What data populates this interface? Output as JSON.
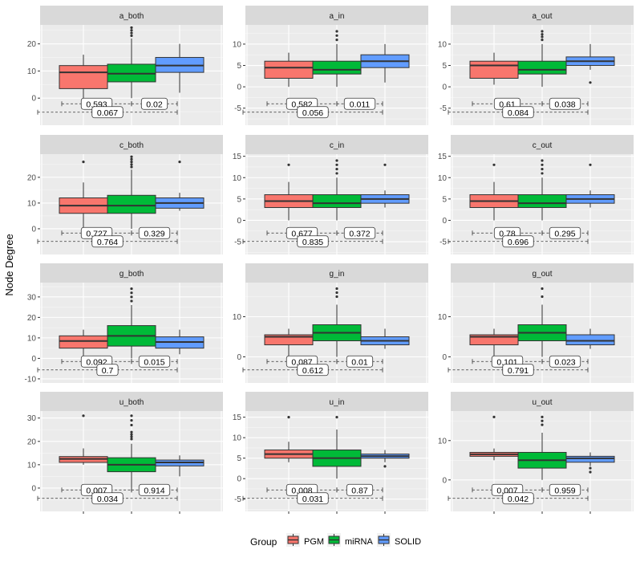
{
  "y_axis_title": "Node Degree",
  "colors": {
    "PGM": "#F8766D",
    "miRNA": "#00BA38",
    "SOLID": "#619CFF",
    "panel_bg": "#EBEBEB",
    "strip_bg": "#D9D9D9"
  },
  "legend": {
    "title": "Group",
    "items": [
      "PGM",
      "miRNA",
      "SOLID"
    ]
  },
  "chart_data": {
    "type": "boxplot",
    "facets": "4 rows x 3 columns, free y scales",
    "groups": [
      "PGM",
      "miRNA",
      "SOLID"
    ],
    "panels": [
      {
        "title": "a_both",
        "ylim": [
          -10,
          27
        ],
        "ticks": [
          0,
          10,
          20
        ],
        "boxes": [
          {
            "group": "PGM",
            "min": 0,
            "q1": 3.5,
            "median": 9.5,
            "q3": 12,
            "max": 16,
            "outliers": []
          },
          {
            "group": "miRNA",
            "min": 0,
            "q1": 6,
            "median": 9,
            "q3": 12.5,
            "max": 22,
            "outliers": [
              23,
              24,
              25,
              26
            ]
          },
          {
            "group": "SOLID",
            "min": 2,
            "q1": 9.5,
            "median": 12,
            "q3": 15,
            "max": 20,
            "outliers": []
          }
        ],
        "pvalues": [
          "0.593",
          "0.02",
          "0.067"
        ]
      },
      {
        "title": "a_in",
        "ylim": [
          -9,
          14.5
        ],
        "ticks": [
          -5,
          0,
          5,
          10
        ],
        "boxes": [
          {
            "group": "PGM",
            "min": 0,
            "q1": 2,
            "median": 4.5,
            "q3": 6,
            "max": 8,
            "outliers": []
          },
          {
            "group": "miRNA",
            "min": 0,
            "q1": 3,
            "median": 4,
            "q3": 6,
            "max": 10,
            "outliers": [
              11,
              12,
              13
            ]
          },
          {
            "group": "SOLID",
            "min": 1,
            "q1": 4.5,
            "median": 6,
            "q3": 7.5,
            "max": 10,
            "outliers": []
          }
        ],
        "pvalues": [
          "0.582",
          "0.011",
          "0.056"
        ]
      },
      {
        "title": "a_out",
        "ylim": [
          -9,
          14.5
        ],
        "ticks": [
          -5,
          0,
          5,
          10
        ],
        "boxes": [
          {
            "group": "PGM",
            "min": 0.5,
            "q1": 2,
            "median": 5,
            "q3": 6,
            "max": 8,
            "outliers": []
          },
          {
            "group": "miRNA",
            "min": 0,
            "q1": 3,
            "median": 4,
            "q3": 6,
            "max": 10,
            "outliers": [
              11,
              11.7,
              12.3,
              13
            ]
          },
          {
            "group": "SOLID",
            "min": 4,
            "q1": 5,
            "median": 6,
            "q3": 7,
            "max": 10,
            "outliers": [
              1
            ]
          }
        ],
        "pvalues": [
          "0.61",
          "0.038",
          "0.084"
        ]
      },
      {
        "title": "c_both",
        "ylim": [
          -10,
          29
        ],
        "ticks": [
          0,
          10,
          20
        ],
        "boxes": [
          {
            "group": "PGM",
            "min": 0,
            "q1": 6,
            "median": 9,
            "q3": 12,
            "max": 18,
            "outliers": [
              26
            ]
          },
          {
            "group": "miRNA",
            "min": 0,
            "q1": 6,
            "median": 9,
            "q3": 13,
            "max": 23,
            "outliers": [
              24,
              25,
              26,
              27,
              28
            ]
          },
          {
            "group": "SOLID",
            "min": 7,
            "q1": 8,
            "median": 10,
            "q3": 12,
            "max": 14,
            "outliers": [
              26
            ]
          }
        ],
        "pvalues": [
          "0.727",
          "0.329",
          "0.764"
        ]
      },
      {
        "title": "c_in",
        "ylim": [
          -8,
          15.5
        ],
        "ticks": [
          -5,
          0,
          5,
          10,
          15
        ],
        "boxes": [
          {
            "group": "PGM",
            "min": 0,
            "q1": 3,
            "median": 4.5,
            "q3": 6,
            "max": 9,
            "outliers": [
              13
            ]
          },
          {
            "group": "miRNA",
            "min": 0,
            "q1": 3,
            "median": 4,
            "q3": 6,
            "max": 10,
            "outliers": [
              11,
              12,
              13,
              14
            ]
          },
          {
            "group": "SOLID",
            "min": 3,
            "q1": 4,
            "median": 5,
            "q3": 6,
            "max": 7,
            "outliers": [
              13
            ]
          }
        ],
        "pvalues": [
          "0.677",
          "0.372",
          "0.835"
        ]
      },
      {
        "title": "c_out",
        "ylim": [
          -8,
          15.5
        ],
        "ticks": [
          -5,
          0,
          5,
          10,
          15
        ],
        "boxes": [
          {
            "group": "PGM",
            "min": 0,
            "q1": 3,
            "median": 4.5,
            "q3": 6,
            "max": 9,
            "outliers": [
              13
            ]
          },
          {
            "group": "miRNA",
            "min": 0,
            "q1": 3,
            "median": 4,
            "q3": 6,
            "max": 10,
            "outliers": [
              11,
              12,
              13,
              14
            ]
          },
          {
            "group": "SOLID",
            "min": 3,
            "q1": 4,
            "median": 5,
            "q3": 6,
            "max": 7,
            "outliers": [
              13
            ]
          }
        ],
        "pvalues": [
          "0.78",
          "0.295",
          "0.696"
        ]
      },
      {
        "title": "g_both",
        "ylim": [
          -12,
          37
        ],
        "ticks": [
          -10,
          0,
          10,
          20,
          30
        ],
        "boxes": [
          {
            "group": "PGM",
            "min": 0,
            "q1": 5,
            "median": 8.5,
            "q3": 11,
            "max": 14,
            "outliers": []
          },
          {
            "group": "miRNA",
            "min": 0,
            "q1": 6,
            "median": 11,
            "q3": 16,
            "max": 26,
            "outliers": [
              28,
              30,
              32,
              34
            ]
          },
          {
            "group": "SOLID",
            "min": 2,
            "q1": 5,
            "median": 8,
            "q3": 10.5,
            "max": 14,
            "outliers": []
          }
        ],
        "pvalues": [
          "0.092",
          "0.015",
          "0.7"
        ]
      },
      {
        "title": "g_in",
        "ylim": [
          -6.5,
          18.5
        ],
        "ticks": [
          0,
          10
        ],
        "boxes": [
          {
            "group": "PGM",
            "min": 0,
            "q1": 3,
            "median": 5,
            "q3": 5.5,
            "max": 7,
            "outliers": []
          },
          {
            "group": "miRNA",
            "min": 0,
            "q1": 4,
            "median": 6,
            "q3": 8,
            "max": 13,
            "outliers": [
              15,
              16,
              17
            ]
          },
          {
            "group": "SOLID",
            "min": 2,
            "q1": 3,
            "median": 4,
            "q3": 5,
            "max": 7,
            "outliers": []
          }
        ],
        "pvalues": [
          "0.087",
          "0.01",
          "0.612"
        ]
      },
      {
        "title": "g_out",
        "ylim": [
          -6.5,
          18.5
        ],
        "ticks": [
          0,
          10
        ],
        "boxes": [
          {
            "group": "PGM",
            "min": 0,
            "q1": 3,
            "median": 5,
            "q3": 5.5,
            "max": 7,
            "outliers": []
          },
          {
            "group": "miRNA",
            "min": 0,
            "q1": 4,
            "median": 6,
            "q3": 8,
            "max": 13,
            "outliers": [
              15,
              17
            ]
          },
          {
            "group": "SOLID",
            "min": 2,
            "q1": 3,
            "median": 4,
            "q3": 5.5,
            "max": 7,
            "outliers": []
          }
        ],
        "pvalues": [
          "0.101",
          "0.023",
          "0.791"
        ]
      },
      {
        "title": "u_both",
        "ylim": [
          -10,
          33
        ],
        "ticks": [
          0,
          10,
          20,
          30
        ],
        "boxes": [
          {
            "group": "PGM",
            "min": 10,
            "q1": 11,
            "median": 12.5,
            "q3": 13.5,
            "max": 17,
            "outliers": [
              31
            ]
          },
          {
            "group": "miRNA",
            "min": 0,
            "q1": 7,
            "median": 10,
            "q3": 13,
            "max": 19,
            "outliers": [
              21,
              22,
              23,
              24,
              27,
              29,
              31
            ]
          },
          {
            "group": "SOLID",
            "min": 5,
            "q1": 9.5,
            "median": 11,
            "q3": 12,
            "max": 14,
            "outliers": []
          }
        ],
        "pvalues": [
          "0.007",
          "0.914",
          "0.034"
        ]
      },
      {
        "title": "u_in",
        "ylim": [
          -8,
          16.5
        ],
        "ticks": [
          -5,
          0,
          5,
          10,
          15
        ],
        "boxes": [
          {
            "group": "PGM",
            "min": 4,
            "q1": 5,
            "median": 6,
            "q3": 7,
            "max": 9,
            "outliers": [
              15
            ]
          },
          {
            "group": "miRNA",
            "min": 0,
            "q1": 3,
            "median": 5,
            "q3": 7,
            "max": 12,
            "outliers": [
              15
            ]
          },
          {
            "group": "SOLID",
            "min": 4,
            "q1": 5,
            "median": 5.5,
            "q3": 6,
            "max": 7,
            "outliers": [
              3
            ]
          }
        ],
        "pvalues": [
          "0.008",
          "0.87",
          "0.031"
        ]
      },
      {
        "title": "u_out",
        "ylim": [
          -8,
          17.5
        ],
        "ticks": [
          0,
          10
        ],
        "boxes": [
          {
            "group": "PGM",
            "min": 5,
            "q1": 6,
            "median": 6.5,
            "q3": 7,
            "max": 8,
            "outliers": [
              16
            ]
          },
          {
            "group": "miRNA",
            "min": 0,
            "q1": 3,
            "median": 5,
            "q3": 7,
            "max": 12,
            "outliers": [
              14,
              15,
              16
            ]
          },
          {
            "group": "SOLID",
            "min": 3.5,
            "q1": 4.5,
            "median": 5.5,
            "q3": 6,
            "max": 7,
            "outliers": [
              2,
              3
            ]
          }
        ],
        "pvalues": [
          "0.007",
          "0.959",
          "0.042"
        ]
      }
    ]
  }
}
